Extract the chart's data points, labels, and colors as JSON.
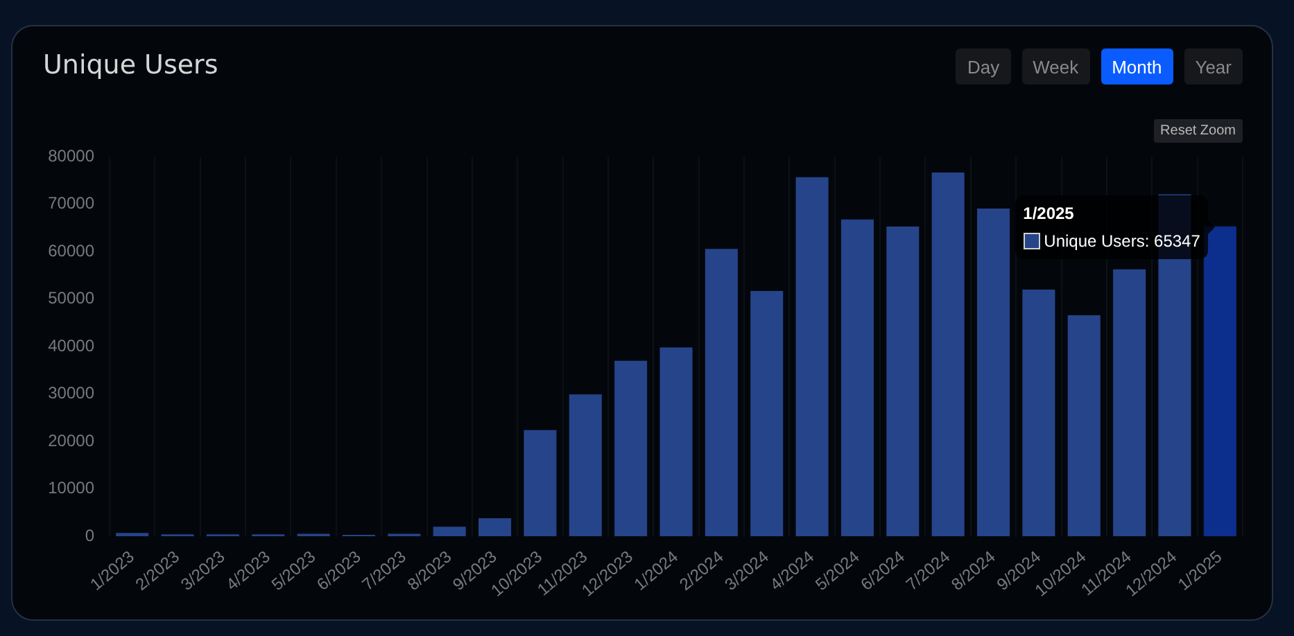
{
  "chart_data": {
    "type": "bar",
    "title": "Unique Users",
    "categories": [
      "1/2023",
      "2/2023",
      "3/2023",
      "4/2023",
      "5/2023",
      "6/2023",
      "7/2023",
      "8/2023",
      "9/2023",
      "10/2023",
      "11/2023",
      "12/2023",
      "1/2024",
      "2/2024",
      "3/2024",
      "4/2024",
      "5/2024",
      "6/2024",
      "7/2024",
      "8/2024",
      "9/2024",
      "10/2024",
      "11/2024",
      "12/2024",
      "1/2025"
    ],
    "values": [
      700,
      400,
      400,
      400,
      500,
      300,
      500,
      2000,
      3800,
      22400,
      29900,
      37000,
      39800,
      60600,
      51700,
      75700,
      66800,
      65300,
      76700,
      69100,
      52000,
      46600,
      56300,
      72100,
      65347
    ],
    "colors": [
      "#26448a",
      "#26448a",
      "#26448a",
      "#26448a",
      "#26448a",
      "#26448a",
      "#26448a",
      "#26448a",
      "#26448a",
      "#26448a",
      "#26448a",
      "#26448a",
      "#26448a",
      "#26448a",
      "#26448a",
      "#26448a",
      "#26448a",
      "#26448a",
      "#26448a",
      "#26448a",
      "#26448a",
      "#26448a",
      "#26448a",
      "#26448a",
      "#0c2e8c"
    ],
    "ylim": [
      0,
      80000
    ],
    "yticks": [
      0,
      10000,
      20000,
      30000,
      40000,
      50000,
      60000,
      70000,
      80000
    ],
    "grid": "x",
    "annotations": [
      "Day",
      "Week",
      "Month",
      "Year",
      "Reset Zoom",
      "1/2025",
      "Unique Users: 65347"
    ]
  }
}
